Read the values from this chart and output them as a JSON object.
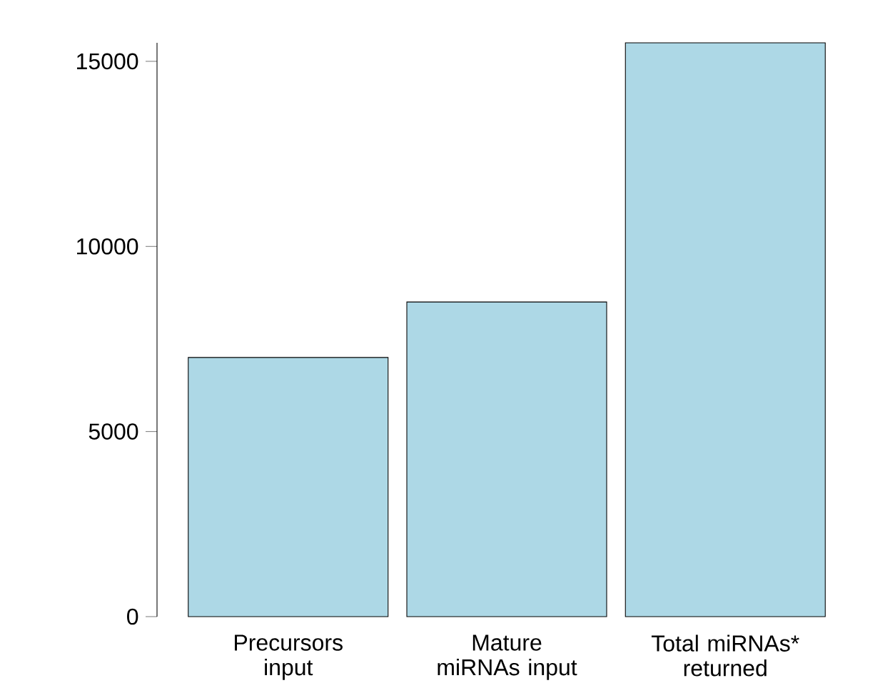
{
  "chart_data": {
    "type": "bar",
    "categories": [
      "Precursors input",
      "Mature miRNAs input",
      "Total miRNAs* returned"
    ],
    "values": [
      7000,
      8500,
      15500
    ],
    "color": "#add8e6",
    "ylim": [
      0,
      15500
    ],
    "yticks": [
      0,
      5000,
      10000,
      15000
    ],
    "grid": false
  }
}
